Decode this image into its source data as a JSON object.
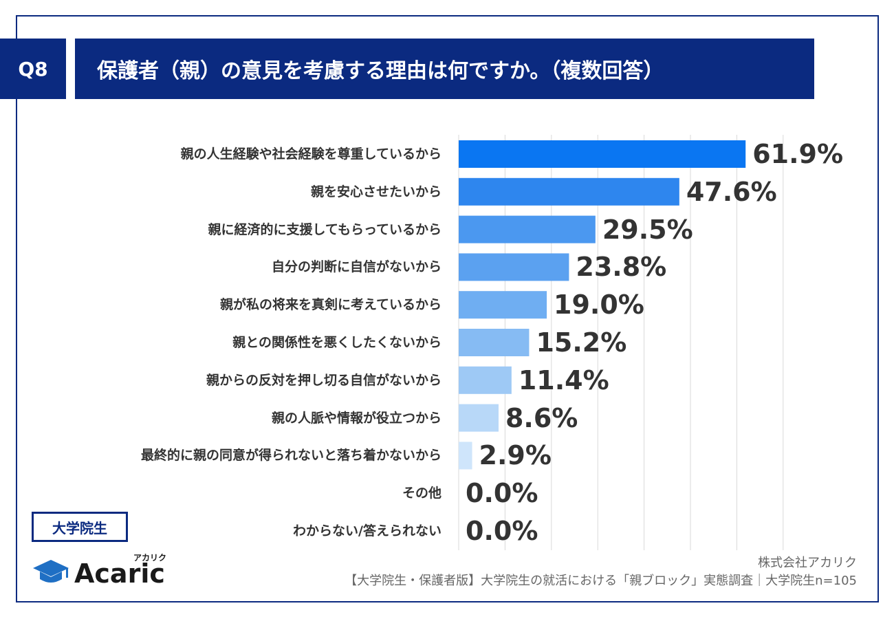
{
  "header": {
    "question_no": "Q8",
    "title": "保護者（親）の意見を考慮する理由は何ですか。（複数回答）"
  },
  "segment_tag": "大学院生",
  "logo": {
    "name": "Acaric",
    "kana": "アカリク"
  },
  "footer": {
    "company": "株式会社アカリク",
    "source": "【大学院生・保護者版】大学院生の就活における「親ブロック」実態調査｜大学院生n=105"
  },
  "colors": {
    "navy": "#0b2a80",
    "bar_scale": [
      "#0a76f2",
      "#2e86ee",
      "#4b98f0",
      "#5ba1f0",
      "#6faef2",
      "#86bbf3",
      "#9ec9f5",
      "#b8d8f8",
      "#cfe5fb",
      "#e0eefc",
      "#e0eefc"
    ],
    "grid": "#d9d9d9"
  },
  "chart_data": {
    "type": "bar",
    "orientation": "horizontal",
    "categories": [
      "親の人生経験や社会経験を尊重しているから",
      "親を安心させたいから",
      "親に経済的に支援してもらっているから",
      "自分の判断に自信がないから",
      "親が私の将来を真剣に考えているから",
      "親との関係性を悪くしたくないから",
      "親からの反対を押し切る自信がないから",
      "親の人脈や情報が役立つから",
      "最終的に親の同意が得られないと落ち着かないから",
      "その他",
      "わからない/答えられない"
    ],
    "values": [
      61.9,
      47.6,
      29.5,
      23.8,
      19.0,
      15.2,
      11.4,
      8.6,
      2.9,
      0.0,
      0.0
    ],
    "value_labels": [
      "61.9%",
      "47.6%",
      "29.5%",
      "23.8%",
      "19.0%",
      "15.2%",
      "11.4%",
      "8.6%",
      "2.9%",
      "0.0%",
      "0.0%"
    ],
    "xlim": [
      0,
      70
    ],
    "grid": true
  }
}
